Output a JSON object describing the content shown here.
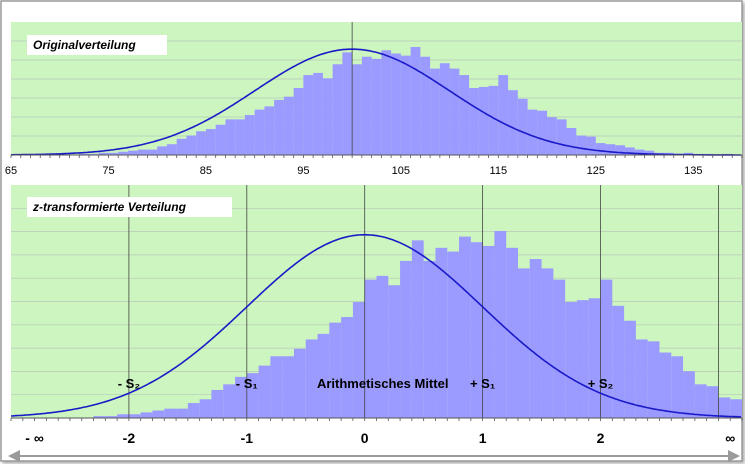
{
  "colors": {
    "plot_bg": "#ccf5c0",
    "bars": "#9a9aff",
    "curve": "#1a1ac8",
    "label_box": "#ffffff",
    "grid": "#b8c8b8",
    "axis": "#555555"
  },
  "chart_data": [
    {
      "type": "bar",
      "title": "Originalverteilung",
      "xlim": [
        65,
        140
      ],
      "x_ticks": [
        "65",
        "75",
        "85",
        "95",
        "105",
        "115",
        "125",
        "135"
      ],
      "x_tick_values": [
        65,
        75,
        85,
        95,
        105,
        115,
        125,
        135
      ],
      "bin_start": 65,
      "bin_width": 1,
      "grid": true,
      "vertical_reference_line": 100,
      "curve": {
        "type": "normal",
        "mean": 100,
        "sd": 10,
        "peak": 0.98
      },
      "values": [
        0,
        0,
        0,
        0,
        0,
        0,
        0,
        0.01,
        0.01,
        0.02,
        0.02,
        0.03,
        0.04,
        0.05,
        0.05,
        0.08,
        0.1,
        0.15,
        0.18,
        0.22,
        0.24,
        0.28,
        0.33,
        0.33,
        0.37,
        0.42,
        0.45,
        0.51,
        0.54,
        0.62,
        0.74,
        0.76,
        0.71,
        0.84,
        0.95,
        0.84,
        0.91,
        0.89,
        0.97,
        0.94,
        0.92,
        1.0,
        0.91,
        0.8,
        0.85,
        0.8,
        0.74,
        0.62,
        0.63,
        0.64,
        0.74,
        0.6,
        0.52,
        0.42,
        0.41,
        0.35,
        0.33,
        0.25,
        0.18,
        0.17,
        0.11,
        0.1,
        0.09,
        0.07,
        0.05,
        0.04,
        0.02,
        0.02,
        0.01,
        0.02,
        0.01,
        0.01,
        0,
        0.01,
        0,
        0
      ]
    },
    {
      "type": "bar",
      "title": "z-transformierte Verteilung",
      "xlim": [
        -3.0,
        3.2
      ],
      "x_ticks": [
        "- ∞",
        "-2",
        "-1",
        "0",
        "1",
        "2",
        "∞"
      ],
      "x_tick_values": [
        -2.8,
        -2,
        -1,
        0,
        1,
        2,
        3.1
      ],
      "bin_start": -3.0,
      "bin_width": 0.1,
      "grid": true,
      "vertical_reference_lines": [
        -2,
        -1,
        0,
        1,
        2,
        3
      ],
      "curve": {
        "type": "normal",
        "mean": 0,
        "sd": 1,
        "peak": 0.98
      },
      "values": [
        0,
        0,
        0,
        0,
        0,
        0,
        0,
        0.01,
        0.01,
        0.02,
        0.02,
        0.03,
        0.04,
        0.05,
        0.05,
        0.08,
        0.1,
        0.15,
        0.18,
        0.22,
        0.24,
        0.28,
        0.33,
        0.33,
        0.37,
        0.42,
        0.45,
        0.51,
        0.54,
        0.62,
        0.74,
        0.76,
        0.71,
        0.84,
        0.95,
        0.84,
        0.91,
        0.89,
        0.97,
        0.94,
        0.92,
        1.0,
        0.91,
        0.8,
        0.85,
        0.8,
        0.74,
        0.62,
        0.63,
        0.64,
        0.74,
        0.6,
        0.52,
        0.42,
        0.41,
        0.35,
        0.33,
        0.25,
        0.18,
        0.17,
        0.11,
        0.1
      ],
      "annotations": [
        {
          "text": "- S₂",
          "x": -2
        },
        {
          "text": "- S₁",
          "x": -1
        },
        {
          "text": "Arithmetisches Mittel",
          "x": 0
        },
        {
          "text": "+ S₁",
          "x": 1
        },
        {
          "text": "+ S₂",
          "x": 2
        }
      ],
      "axis_arrow": "double-headed"
    }
  ]
}
